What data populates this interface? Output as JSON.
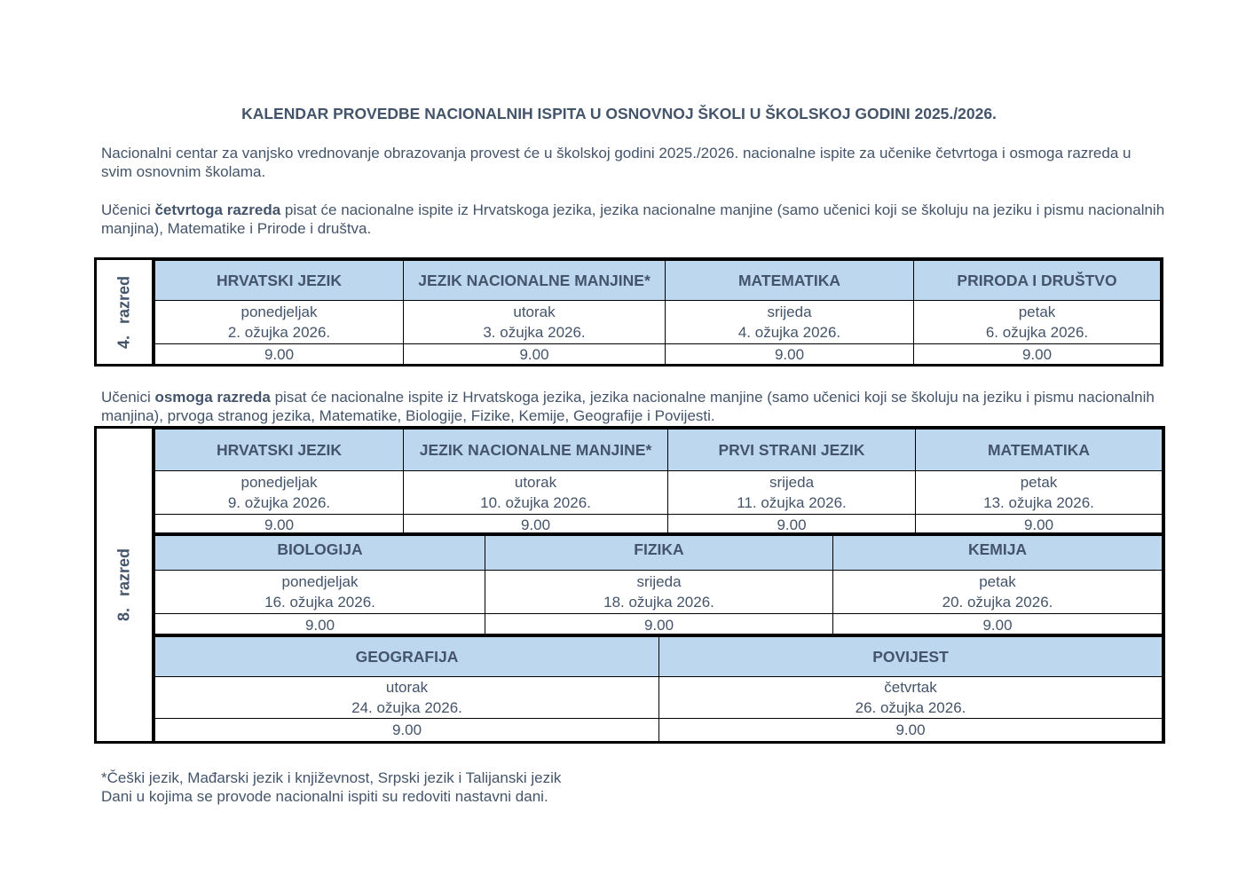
{
  "title": "KALENDAR PROVEDBE NACIONALNIH ISPITA U OSNOVNOJ ŠKOLI U ŠKOLSKOJ GODINI 2025./2026.",
  "intro": "Nacionalni centar za vanjsko vrednovanje obrazovanja provest će u školskoj godini 2025./2026. nacionalne ispite za učenike četvrtoga i osmoga razreda u svim osnovnim školama.",
  "grade4_text": {
    "pre": "Učenici ",
    "bold": "četvrtoga razreda",
    "post": " pisat će nacionalne ispite iz Hrvatskoga jezika, jezika nacionalne manjine (samo učenici koji se školuju na jeziku i pismu nacionalnih manjina), Matematike i Prirode i društva."
  },
  "grade8_text": {
    "pre": "Učenici ",
    "bold": "osmoga razreda",
    "post": " pisat će nacionalne ispite iz Hrvatskoga jezika, jezika nacionalne manjine (samo učenici koji se školuju na jeziku i pismu nacionalnih manjina), prvoga stranog jezika, Matematike, Biologije, Fizike, Kemije, Geografije i Povijesti."
  },
  "table4": {
    "label": "4. razred",
    "groups": [
      [
        {
          "subject": "HRVATSKI JEZIK",
          "day": "ponedjeljak",
          "date": "2. ožujka 2026.",
          "time": "9.00"
        },
        {
          "subject": "JEZIK NACIONALNE MANJINE*",
          "day": "utorak",
          "date": "3. ožujka 2026.",
          "time": "9.00"
        },
        {
          "subject": "MATEMATIKA",
          "day": "srijeda",
          "date": "4. ožujka 2026.",
          "time": "9.00"
        },
        {
          "subject": "PRIRODA I DRUŠTVO",
          "day": "petak",
          "date": "6. ožujka 2026.",
          "time": "9.00"
        }
      ]
    ]
  },
  "table8": {
    "label": "8. razred",
    "groups": [
      [
        {
          "subject": "HRVATSKI JEZIK",
          "day": "ponedjeljak",
          "date": "9. ožujka 2026.",
          "time": "9.00"
        },
        {
          "subject": "JEZIK NACIONALNE MANJINE*",
          "day": "utorak",
          "date": "10. ožujka 2026.",
          "time": "9.00"
        },
        {
          "subject": "PRVI STRANI JEZIK",
          "day": "srijeda",
          "date": "11. ožujka 2026.",
          "time": "9.00"
        },
        {
          "subject": "MATEMATIKA",
          "day": "petak",
          "date": "13. ožujka 2026.",
          "time": "9.00"
        }
      ],
      [
        {
          "subject": "BIOLOGIJA",
          "day": "ponedjeljak",
          "date": "16. ožujka 2026.",
          "time": "9.00"
        },
        {
          "subject": "FIZIKA",
          "day": "srijeda",
          "date": "18. ožujka 2026.",
          "time": "9.00"
        },
        {
          "subject": "KEMIJA",
          "day": "petak",
          "date": "20. ožujka 2026.",
          "time": "9.00"
        }
      ],
      [
        {
          "subject": "GEOGRAFIJA",
          "day": "utorak",
          "date": "24. ožujka 2026.",
          "time": "9.00"
        },
        {
          "subject": "POVIJEST",
          "day": "četvrtak",
          "date": "26. ožujka 2026.",
          "time": "9.00"
        }
      ]
    ]
  },
  "footnotes": [
    "*Češki jezik, Mađarski jezik i književnost, Srpski jezik i Talijanski jezik",
    "Dani u kojima se provode nacionalni ispiti su redoviti nastavni dani."
  ],
  "colors": {
    "text": "#44546a",
    "header_bg": "#bdd7ee",
    "border": "#000000"
  }
}
